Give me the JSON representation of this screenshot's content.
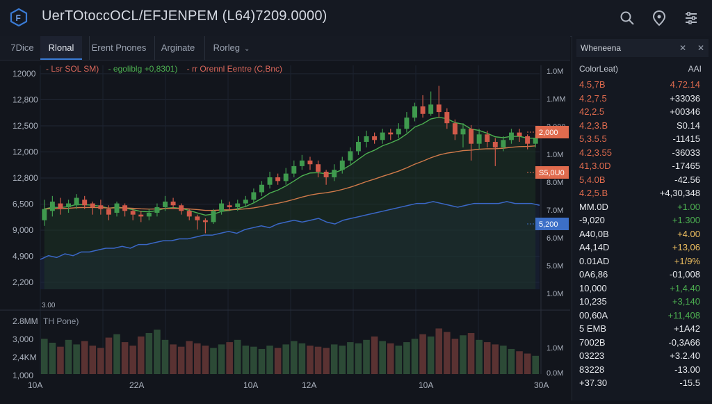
{
  "app": {
    "title": "UerTOtoccOCL/EFJENPEM (L64)7209.0000)"
  },
  "topbar": {
    "icons": [
      "search-icon",
      "alert-icon",
      "settings-icon"
    ]
  },
  "tabs": [
    {
      "label": "7Dice",
      "active": false
    },
    {
      "label": "Rlonal",
      "active": true
    },
    {
      "label": "Erent Pnones",
      "active": false
    },
    {
      "label": "Arginate",
      "active": false
    },
    {
      "label": "Rorleg",
      "active": false,
      "dropdown": true
    }
  ],
  "legend": {
    "items": [
      {
        "label": "- Lsr SOL SM)",
        "color": "#d8675b"
      },
      {
        "label": "- egoliblg +0,8301)",
        "color": "#4caf50"
      },
      {
        "label": "- rr Orennl Eentre (C,Bnc)",
        "color": "#d8675b"
      }
    ]
  },
  "price_axis_left": [
    "12000",
    "12,800",
    "12,500",
    "12,000",
    "12,800",
    "6,500",
    "9,000",
    "4,900",
    "2,200"
  ],
  "price_axis_left_bottom": "3.00",
  "price_axis_right": [
    "1.0M",
    "1.MM",
    "2,000",
    "1.0M",
    "8.0M",
    "7.0M",
    "6.0M",
    "5.0M",
    "1.0M"
  ],
  "price_tags": [
    {
      "label": "2,000",
      "color": "#e06b4e"
    },
    {
      "label": "S5,0U0",
      "color": "#e06b4e"
    },
    {
      "label": "5,200",
      "color": "#3c6fc7"
    }
  ],
  "volume": {
    "title": "TH Pone)",
    "axis_left": [
      "2.8MM",
      "3,000",
      "2,4KM",
      "1,000"
    ],
    "axis_right": [
      "1.0M",
      "0.0M"
    ]
  },
  "x_axis": [
    "10A",
    "22A",
    "10A",
    "12A",
    "10A",
    "30A"
  ],
  "colors": {
    "up": "#3f9a4e",
    "down": "#d25a4a",
    "ema_green": "#4caf50",
    "ema_orange": "#d07a4a",
    "blue_line": "#3a67c6",
    "accent": "#3a7bd5"
  },
  "chart_data": {
    "type": "candlestick",
    "candles": [
      {
        "o": 3.7,
        "c": 4.3,
        "h": 4.8,
        "l": 3.4
      },
      {
        "o": 4.2,
        "c": 4.7,
        "h": 5.0,
        "l": 3.9
      },
      {
        "o": 4.6,
        "c": 4.3,
        "h": 4.9,
        "l": 4.0
      },
      {
        "o": 4.4,
        "c": 4.6,
        "h": 4.8,
        "l": 4.1
      },
      {
        "o": 4.5,
        "c": 4.9,
        "h": 5.1,
        "l": 4.3
      },
      {
        "o": 4.8,
        "c": 4.5,
        "h": 5.0,
        "l": 4.3
      },
      {
        "o": 4.6,
        "c": 4.4,
        "h": 4.7,
        "l": 4.0
      },
      {
        "o": 4.5,
        "c": 4.3,
        "h": 4.8,
        "l": 4.0
      },
      {
        "o": 4.3,
        "c": 4.0,
        "h": 4.5,
        "l": 3.7
      },
      {
        "o": 4.1,
        "c": 4.6,
        "h": 4.7,
        "l": 3.9
      },
      {
        "o": 4.5,
        "c": 4.2,
        "h": 4.6,
        "l": 3.9
      },
      {
        "o": 4.2,
        "c": 4.0,
        "h": 4.3,
        "l": 3.7
      },
      {
        "o": 4.0,
        "c": 3.9,
        "h": 4.2,
        "l": 3.6
      },
      {
        "o": 3.9,
        "c": 4.1,
        "h": 4.3,
        "l": 3.7
      },
      {
        "o": 4.1,
        "c": 4.4,
        "h": 4.6,
        "l": 3.9
      },
      {
        "o": 4.4,
        "c": 4.7,
        "h": 5.0,
        "l": 4.2
      },
      {
        "o": 4.7,
        "c": 4.5,
        "h": 4.9,
        "l": 4.3
      },
      {
        "o": 4.5,
        "c": 4.2,
        "h": 4.6,
        "l": 4.0
      },
      {
        "o": 4.2,
        "c": 3.9,
        "h": 4.3,
        "l": 3.7
      },
      {
        "o": 3.9,
        "c": 3.7,
        "h": 4.0,
        "l": 3.2
      },
      {
        "o": 3.7,
        "c": 3.6,
        "h": 3.8,
        "l": 3.0
      },
      {
        "o": 3.6,
        "c": 4.2,
        "h": 4.3,
        "l": 3.5
      },
      {
        "o": 4.2,
        "c": 4.6,
        "h": 4.8,
        "l": 4.0
      },
      {
        "o": 4.5,
        "c": 4.4,
        "h": 4.7,
        "l": 4.2
      },
      {
        "o": 4.4,
        "c": 4.6,
        "h": 4.8,
        "l": 4.2
      },
      {
        "o": 4.6,
        "c": 4.8,
        "h": 5.0,
        "l": 4.4
      },
      {
        "o": 4.8,
        "c": 5.2,
        "h": 5.4,
        "l": 4.6
      },
      {
        "o": 5.2,
        "c": 5.6,
        "h": 5.8,
        "l": 5.0
      },
      {
        "o": 5.6,
        "c": 6.0,
        "h": 6.3,
        "l": 5.4
      },
      {
        "o": 6.0,
        "c": 5.8,
        "h": 6.2,
        "l": 5.6
      },
      {
        "o": 5.8,
        "c": 6.2,
        "h": 6.5,
        "l": 5.6
      },
      {
        "o": 6.2,
        "c": 6.6,
        "h": 6.9,
        "l": 6.0
      },
      {
        "o": 6.6,
        "c": 6.9,
        "h": 7.2,
        "l": 6.4
      },
      {
        "o": 6.9,
        "c": 6.7,
        "h": 7.1,
        "l": 6.4
      },
      {
        "o": 6.7,
        "c": 6.3,
        "h": 6.9,
        "l": 6.0
      },
      {
        "o": 6.3,
        "c": 6.0,
        "h": 6.4,
        "l": 5.6
      },
      {
        "o": 6.0,
        "c": 6.4,
        "h": 6.7,
        "l": 5.8
      },
      {
        "o": 6.4,
        "c": 6.9,
        "h": 7.1,
        "l": 6.2
      },
      {
        "o": 6.9,
        "c": 7.4,
        "h": 7.6,
        "l": 6.7
      },
      {
        "o": 7.4,
        "c": 7.9,
        "h": 8.2,
        "l": 7.2
      },
      {
        "o": 7.9,
        "c": 8.2,
        "h": 8.5,
        "l": 7.6
      },
      {
        "o": 8.2,
        "c": 8.0,
        "h": 8.4,
        "l": 7.8
      },
      {
        "o": 8.0,
        "c": 8.4,
        "h": 8.6,
        "l": 7.8
      },
      {
        "o": 8.4,
        "c": 8.3,
        "h": 8.6,
        "l": 8.0
      },
      {
        "o": 8.3,
        "c": 8.6,
        "h": 8.9,
        "l": 8.1
      },
      {
        "o": 8.6,
        "c": 9.2,
        "h": 9.5,
        "l": 8.4
      },
      {
        "o": 9.2,
        "c": 9.8,
        "h": 10.0,
        "l": 9.0
      },
      {
        "o": 9.8,
        "c": 9.4,
        "h": 10.4,
        "l": 9.2
      },
      {
        "o": 9.4,
        "c": 9.9,
        "h": 10.6,
        "l": 9.3
      },
      {
        "o": 9.9,
        "c": 9.5,
        "h": 10.9,
        "l": 9.2
      },
      {
        "o": 9.5,
        "c": 8.9,
        "h": 9.7,
        "l": 8.6
      },
      {
        "o": 8.9,
        "c": 8.3,
        "h": 9.1,
        "l": 8.0
      },
      {
        "o": 8.3,
        "c": 8.6,
        "h": 8.9,
        "l": 7.6
      },
      {
        "o": 8.6,
        "c": 7.8,
        "h": 8.8,
        "l": 6.9
      },
      {
        "o": 7.8,
        "c": 8.3,
        "h": 8.6,
        "l": 7.5
      },
      {
        "o": 8.3,
        "c": 7.9,
        "h": 8.5,
        "l": 7.6
      },
      {
        "o": 7.9,
        "c": 7.6,
        "h": 8.1,
        "l": 6.6
      },
      {
        "o": 7.6,
        "c": 8.0,
        "h": 8.2,
        "l": 7.4
      },
      {
        "o": 8.0,
        "c": 8.4,
        "h": 8.6,
        "l": 7.8
      },
      {
        "o": 8.4,
        "c": 8.2,
        "h": 8.6,
        "l": 7.9
      },
      {
        "o": 8.2,
        "c": 7.8,
        "h": 8.3,
        "l": 7.5
      },
      {
        "o": 7.8,
        "c": 8.1,
        "h": 8.3,
        "l": 7.6
      }
    ],
    "volumes": [
      0.62,
      0.55,
      0.48,
      0.6,
      0.52,
      0.58,
      0.5,
      0.46,
      0.64,
      0.7,
      0.56,
      0.5,
      0.66,
      0.72,
      0.78,
      0.6,
      0.52,
      0.48,
      0.58,
      0.54,
      0.5,
      0.46,
      0.52,
      0.56,
      0.6,
      0.5,
      0.48,
      0.44,
      0.5,
      0.46,
      0.52,
      0.58,
      0.54,
      0.5,
      0.48,
      0.46,
      0.52,
      0.5,
      0.56,
      0.54,
      0.6,
      0.66,
      0.58,
      0.54,
      0.5,
      0.56,
      0.62,
      0.7,
      0.66,
      0.8,
      0.74,
      0.62,
      0.68,
      0.72,
      0.6,
      0.56,
      0.52,
      0.5,
      0.44,
      0.4,
      0.36,
      0.32
    ],
    "blue_line": [
      1.6,
      1.8,
      1.7,
      1.9,
      1.8,
      2.0,
      2.0,
      2.1,
      2.2,
      2.2,
      2.3,
      2.2,
      2.4,
      2.4,
      2.5,
      2.6,
      2.6,
      2.7,
      2.7,
      2.8,
      2.9,
      2.9,
      3.0,
      3.1,
      3.0,
      3.2,
      3.3,
      3.4,
      3.3,
      3.5,
      3.6,
      3.7,
      3.6,
      3.7,
      3.8,
      3.6,
      3.5,
      3.7,
      3.8,
      3.9,
      4.0,
      4.1,
      4.2,
      4.3,
      4.4,
      4.5,
      4.6,
      4.6,
      4.7,
      4.6,
      4.5,
      4.4,
      4.5,
      4.6,
      4.6,
      4.6,
      4.6,
      4.7,
      4.6,
      4.6,
      4.6,
      4.5
    ],
    "ylim": [
      0,
      12
    ],
    "volume_ylim": [
      0,
      1
    ]
  },
  "side_panel": {
    "title": "Wheneena",
    "col_left": "ColorLeat)",
    "col_right": "AAI",
    "rows": [
      {
        "l": "4.5,7B",
        "r": "4.72.14",
        "lc": "#e06b4e",
        "rc": "#e06b4e"
      },
      {
        "l": "4.2,7.5",
        "r": "+33036",
        "lc": "#e06b4e",
        "rc": "#e6e8ec"
      },
      {
        "l": "42,2.5",
        "r": "+00346",
        "lc": "#e06b4e",
        "rc": "#e6e8ec"
      },
      {
        "l": "4.2,3.B",
        "r": "S0.14",
        "lc": "#e06b4e",
        "rc": "#e6e8ec"
      },
      {
        "l": "5,3.5.5",
        "r": "-11415",
        "lc": "#e06b4e",
        "rc": "#e6e8ec"
      },
      {
        "l": "4.2,3.55",
        "r": "-36033",
        "lc": "#e06b4e",
        "rc": "#e6e8ec"
      },
      {
        "l": "41,3.0D",
        "r": "-17465",
        "lc": "#e06b4e",
        "rc": "#e6e8ec"
      },
      {
        "l": "5,4.0B",
        "r": "-42.56",
        "lc": "#e06b4e",
        "rc": "#e6e8ec"
      },
      {
        "l": "4.2,5.B",
        "r": "+4,30,348",
        "lc": "#e06b4e",
        "rc": "#e6e8ec"
      },
      {
        "l": "MM.0D",
        "r": "+1.00",
        "lc": "#e6e8ec",
        "rc": "#4caf50"
      },
      {
        "l": "-9,020",
        "r": "+1.300",
        "lc": "#e6e8ec",
        "rc": "#4caf50"
      },
      {
        "l": "A40,0B",
        "r": "+4.00",
        "lc": "#e6e8ec",
        "rc": "#f0c060"
      },
      {
        "l": "A4,14D",
        "r": "+13,06",
        "lc": "#e6e8ec",
        "rc": "#f0c060"
      },
      {
        "l": "0.01AD",
        "r": "+1/9%",
        "lc": "#e6e8ec",
        "rc": "#f0c060"
      },
      {
        "l": "0A6,86",
        "r": "-01,008",
        "lc": "#e6e8ec",
        "rc": "#e6e8ec"
      },
      {
        "l": "10,000",
        "r": "+1,4.40",
        "lc": "#e6e8ec",
        "rc": "#4caf50"
      },
      {
        "l": "10,235",
        "r": "+3,140",
        "lc": "#e6e8ec",
        "rc": "#4caf50"
      },
      {
        "l": "00,60A",
        "r": "+11,408",
        "lc": "#e6e8ec",
        "rc": "#4caf50"
      },
      {
        "l": "5 EMB",
        "r": "+1A42",
        "lc": "#e6e8ec",
        "rc": "#e6e8ec"
      },
      {
        "l": "7002B",
        "r": "-0,3A66",
        "lc": "#e6e8ec",
        "rc": "#e6e8ec"
      },
      {
        "l": "03223",
        "r": "+3.2.40",
        "lc": "#e6e8ec",
        "rc": "#e6e8ec"
      },
      {
        "l": "83228",
        "r": "-13.00",
        "lc": "#e6e8ec",
        "rc": "#e6e8ec"
      },
      {
        "l": "+37.30",
        "r": "-15.5",
        "lc": "#e6e8ec",
        "rc": "#e6e8ec"
      }
    ]
  }
}
